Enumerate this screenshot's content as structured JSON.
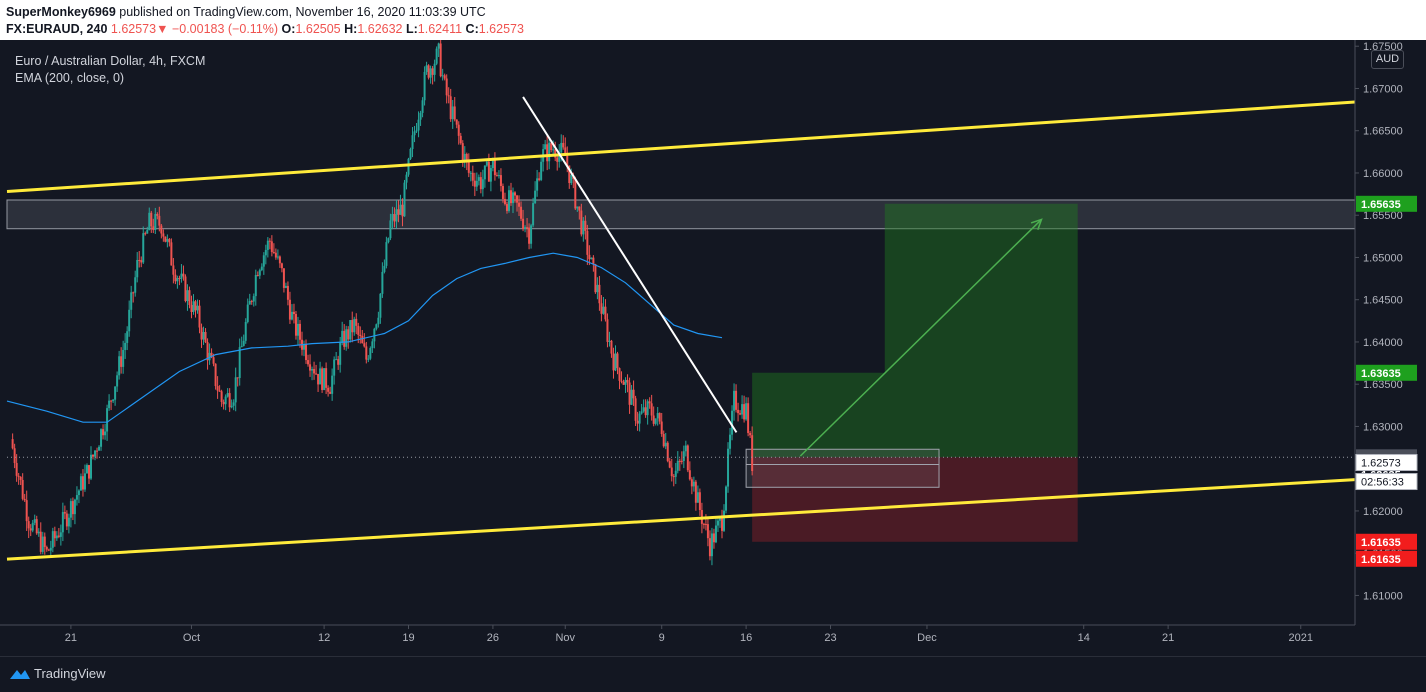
{
  "header": {
    "user": "SuperMonkey6969",
    "published_text": "published on TradingView.com, November 16, 2020 11:03:39 UTC",
    "symbol": "FX:EURAUD, 240",
    "last_price": "1.62573",
    "change_arrow": "▼",
    "change": "−0.00183 (−0.11%)",
    "o_label": "O:",
    "o_val": "1.62505",
    "h_label": "H:",
    "h_val": "1.62632",
    "l_label": "L:",
    "l_val": "1.62411",
    "c_label": "C:",
    "c_val": "1.62573"
  },
  "legend": {
    "instrument": "Euro / Australian Dollar, 4h, FXCM",
    "indicator": "EMA (200, close, 0)"
  },
  "currency": "AUD",
  "footer": {
    "brand": "TradingView"
  },
  "colors": {
    "background": "#131722",
    "up": "#26a69a",
    "down": "#ef5350",
    "ema": "#2196f3",
    "channel": "#ffeb3b",
    "arrow": "#4caf50",
    "target_green": "#1e7a1e",
    "stop_red": "#f23645"
  },
  "chart_data": {
    "type": "candlestick",
    "symbol": "EURAUD",
    "timeframe": "4h",
    "ylim": [
      1.6065,
      1.6755
    ],
    "y_ticks": [
      "1.67500",
      "1.67000",
      "1.66500",
      "1.66000",
      "1.65500",
      "1.65000",
      "1.64500",
      "1.64000",
      "1.63500",
      "1.63000",
      "1.62500",
      "1.62000",
      "1.61500",
      "1.61000"
    ],
    "x_ticks": [
      {
        "label": "21",
        "day": 0
      },
      {
        "label": "Oct",
        "day": 10
      },
      {
        "label": "12",
        "day": 21
      },
      {
        "label": "19",
        "day": 28
      },
      {
        "label": "26",
        "day": 35
      },
      {
        "label": "Nov",
        "day": 41
      },
      {
        "label": "9",
        "day": 49
      },
      {
        "label": "16",
        "day": 56
      },
      {
        "label": "23",
        "day": 63
      },
      {
        "label": "Dec",
        "day": 71
      },
      {
        "label": "14",
        "day": 84
      },
      {
        "label": "21",
        "day": 91
      },
      {
        "label": "2021",
        "day": 102
      }
    ],
    "x_range_days": [
      -5.3,
      106.5
    ],
    "close_series": [
      [
        -5.0,
        1.6285
      ],
      [
        -3.5,
        1.619
      ],
      [
        -2.0,
        1.615
      ],
      [
        -0.5,
        1.619
      ],
      [
        1.5,
        1.625
      ],
      [
        3.0,
        1.6315
      ],
      [
        4.5,
        1.64
      ],
      [
        5.5,
        1.649
      ],
      [
        6.5,
        1.654
      ],
      [
        7.5,
        1.654
      ],
      [
        8.5,
        1.649
      ],
      [
        9.5,
        1.646
      ],
      [
        10.5,
        1.643
      ],
      [
        11.5,
        1.638
      ],
      [
        12.5,
        1.633
      ],
      [
        13.5,
        1.634
      ],
      [
        14.5,
        1.642
      ],
      [
        15.5,
        1.649
      ],
      [
        16.5,
        1.652
      ],
      [
        17.5,
        1.648
      ],
      [
        18.5,
        1.642
      ],
      [
        19.5,
        1.639
      ],
      [
        20.5,
        1.636
      ],
      [
        21.5,
        1.635
      ],
      [
        22.5,
        1.64
      ],
      [
        23.5,
        1.642
      ],
      [
        24.5,
        1.638
      ],
      [
        25.5,
        1.644
      ],
      [
        26.5,
        1.654
      ],
      [
        27.5,
        1.656
      ],
      [
        28.5,
        1.665
      ],
      [
        29.5,
        1.672
      ],
      [
        30.5,
        1.674
      ],
      [
        31.0,
        1.67
      ],
      [
        32.0,
        1.665
      ],
      [
        33.0,
        1.66
      ],
      [
        34.0,
        1.659
      ],
      [
        35.0,
        1.661
      ],
      [
        36.0,
        1.657
      ],
      [
        37.0,
        1.656
      ],
      [
        38.0,
        1.653
      ],
      [
        39.0,
        1.662
      ],
      [
        40.0,
        1.663
      ],
      [
        41.0,
        1.662
      ],
      [
        42.0,
        1.656
      ],
      [
        43.0,
        1.65
      ],
      [
        44.0,
        1.644
      ],
      [
        45.0,
        1.638
      ],
      [
        46.0,
        1.635
      ],
      [
        47.0,
        1.631
      ],
      [
        48.0,
        1.632
      ],
      [
        49.0,
        1.63
      ],
      [
        50.0,
        1.624
      ],
      [
        51.0,
        1.627
      ],
      [
        52.0,
        1.621
      ],
      [
        53.0,
        1.616
      ],
      [
        54.0,
        1.619
      ],
      [
        55.0,
        1.633
      ],
      [
        56.0,
        1.632
      ],
      [
        56.5,
        1.6257
      ]
    ],
    "last_close": 1.62573,
    "ema200": [
      [
        -5.3,
        1.633
      ],
      [
        -2,
        1.6318
      ],
      [
        1,
        1.6305
      ],
      [
        3,
        1.6305
      ],
      [
        6,
        1.6335
      ],
      [
        9,
        1.6365
      ],
      [
        12,
        1.6385
      ],
      [
        15,
        1.6393
      ],
      [
        18,
        1.6395
      ],
      [
        20,
        1.6398
      ],
      [
        23,
        1.64
      ],
      [
        26,
        1.641
      ],
      [
        28,
        1.6425
      ],
      [
        30,
        1.6455
      ],
      [
        32,
        1.6475
      ],
      [
        34,
        1.6487
      ],
      [
        36,
        1.6493
      ],
      [
        38,
        1.65
      ],
      [
        40,
        1.6505
      ],
      [
        42,
        1.65
      ],
      [
        44,
        1.6488
      ],
      [
        46,
        1.647
      ],
      [
        48,
        1.6445
      ],
      [
        50,
        1.642
      ],
      [
        52,
        1.641
      ],
      [
        54,
        1.6405
      ]
    ],
    "channel_upper": [
      [
        -5.3,
        1.6578
      ],
      [
        106.5,
        1.6684
      ]
    ],
    "channel_lower": [
      [
        -5.3,
        1.6143
      ],
      [
        106.5,
        1.6237
      ]
    ],
    "resistance_zone": [
      1.6534,
      1.6568
    ],
    "trendline": [
      [
        37.5,
        1.669
      ],
      [
        55.2,
        1.6293
      ]
    ],
    "entry_box": {
      "x": [
        56,
        72
      ],
      "y": [
        1.6228,
        1.6273
      ],
      "line": 1.6255
    },
    "position": {
      "x": [
        56.5,
        83.5
      ],
      "entry": 1.62635,
      "target1": 1.63635,
      "target2": 1.65635,
      "target2_start": 67.5,
      "stop": 1.61635
    },
    "projection_arrow": [
      [
        60.5,
        1.6265
      ],
      [
        80.5,
        1.6545
      ]
    ],
    "price_labels": [
      {
        "text": "1.65635",
        "value": 1.65635,
        "kind": "target"
      },
      {
        "text": "1.63635",
        "value": 1.63635,
        "kind": "target"
      },
      {
        "text": "1.62635",
        "value": 1.62635,
        "kind": "entry-gray"
      },
      {
        "text": "1.62635",
        "value": 1.62635,
        "kind": "entry-white"
      },
      {
        "text": "1.62573",
        "value": 1.62573,
        "kind": "last"
      },
      {
        "text": "02:56:33",
        "value": 1.6248,
        "kind": "countdown"
      },
      {
        "text": "1.61635",
        "value": 1.61635,
        "kind": "stop"
      },
      {
        "text": "1.61635",
        "value": 1.61635,
        "kind": "stop"
      }
    ]
  }
}
